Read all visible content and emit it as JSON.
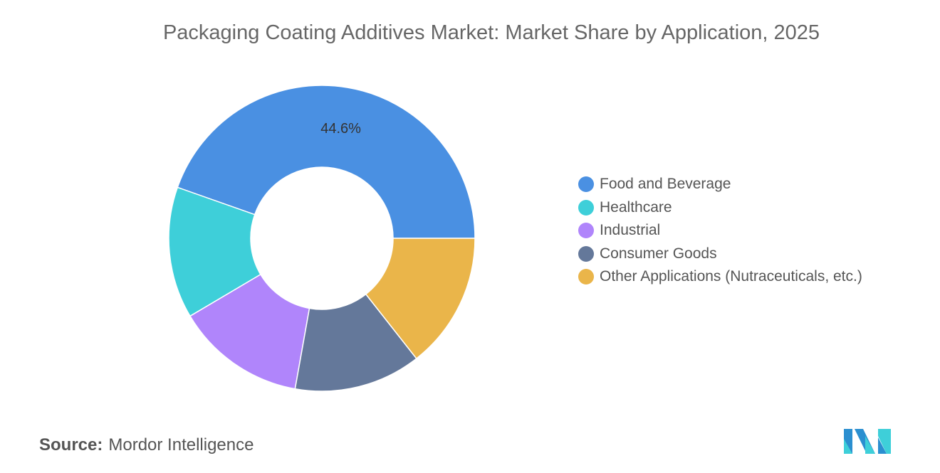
{
  "chart_data": {
    "type": "pie",
    "donut": true,
    "title": "Packaging Coating Additives Market: Market Share by Application, 2025",
    "categories": [
      "Food and Beverage",
      "Healthcare",
      "Industrial",
      "Consumer Goods",
      "Other Applications (Nutraceuticals, etc.)"
    ],
    "values": [
      44.6,
      13.9,
      13.7,
      13.4,
      14.4
    ],
    "colors": [
      "#4a90e2",
      "#3ecfd9",
      "#b085fb",
      "#64789a",
      "#eab54a"
    ],
    "data_labels": [
      "44.6%",
      "",
      "",
      "",
      ""
    ],
    "legend_position": "right"
  },
  "source": {
    "label": "Source:",
    "text": "Mordor Intelligence"
  },
  "logo": {
    "text": "Mordor Intelligence"
  }
}
